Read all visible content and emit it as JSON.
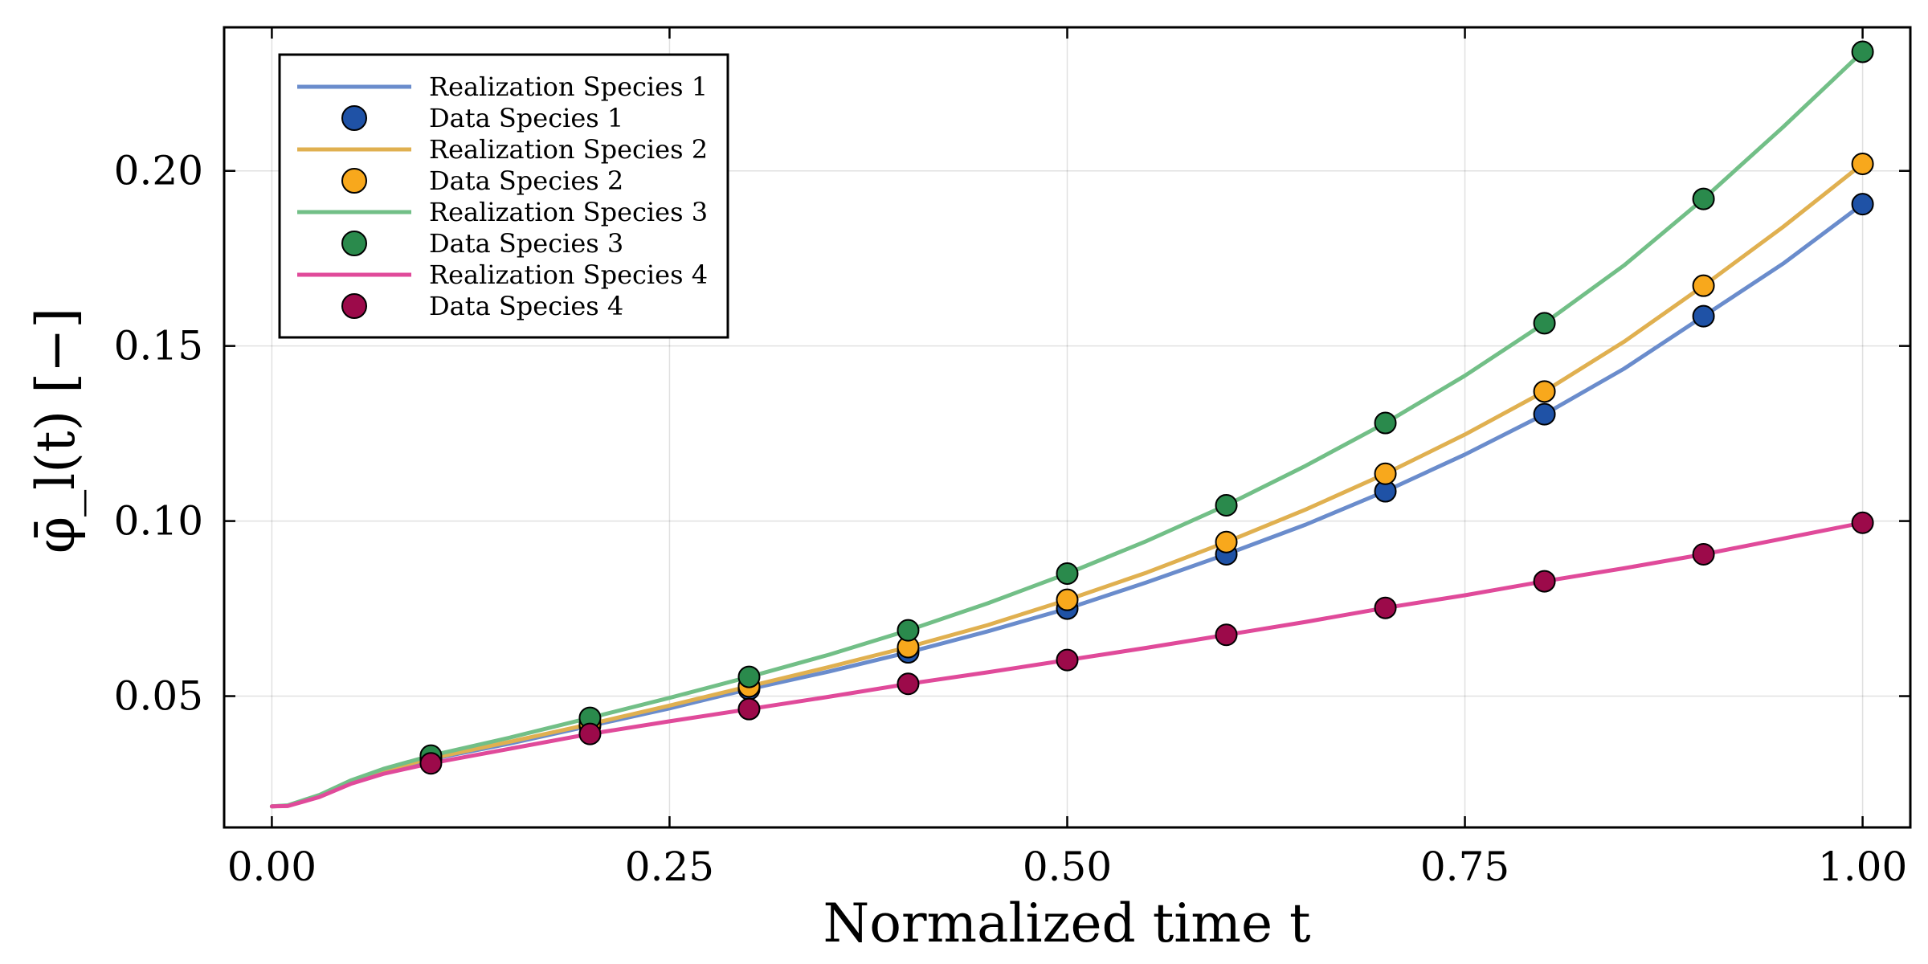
{
  "chart_data": {
    "type": "line",
    "title": "",
    "xlabel": "Normalized time t",
    "ylabel": "φ̄_l(t) [−]",
    "xlim": [
      -0.03,
      1.03
    ],
    "ylim": [
      0.0125,
      0.241
    ],
    "grid": true,
    "legend_position": "top-left",
    "xticks": [
      0.0,
      0.25,
      0.5,
      0.75,
      1.0
    ],
    "xtick_labels": [
      "0.00",
      "0.25",
      "0.50",
      "0.75",
      "1.00"
    ],
    "yticks": [
      0.05,
      0.1,
      0.15,
      0.2
    ],
    "ytick_labels": [
      "0.05",
      "0.10",
      "0.15",
      "0.20"
    ],
    "data_x": [
      0.1,
      0.2,
      0.3,
      0.4,
      0.5,
      0.6,
      0.7,
      0.8,
      0.9,
      1.0
    ],
    "series": [
      {
        "name": "Realization Species 1",
        "data_name": "Data Species 1",
        "line_color": "#6a8ccc",
        "marker_color": "#1f52a6",
        "curve_x": [
          0.0,
          0.01,
          0.03,
          0.05,
          0.07,
          0.1,
          0.15,
          0.2,
          0.25,
          0.3,
          0.35,
          0.4,
          0.45,
          0.5,
          0.55,
          0.6,
          0.65,
          0.7,
          0.75,
          0.8,
          0.85,
          0.9,
          0.95,
          1.0
        ],
        "curve_y": [
          0.0185,
          0.0187,
          0.0215,
          0.0255,
          0.0285,
          0.032,
          0.0365,
          0.0415,
          0.0465,
          0.052,
          0.057,
          0.0625,
          0.0685,
          0.075,
          0.0825,
          0.0905,
          0.099,
          0.1085,
          0.119,
          0.1305,
          0.1435,
          0.1585,
          0.1735,
          0.1905
        ],
        "data_y": [
          0.032,
          0.0415,
          0.052,
          0.0625,
          0.075,
          0.0905,
          0.1085,
          0.1305,
          0.1585,
          0.1905
        ]
      },
      {
        "name": "Realization Species 2",
        "data_name": "Data Species 2",
        "line_color": "#e0b050",
        "marker_color": "#f8a81c",
        "curve_x": [
          0.0,
          0.01,
          0.03,
          0.05,
          0.07,
          0.1,
          0.15,
          0.2,
          0.25,
          0.3,
          0.35,
          0.4,
          0.45,
          0.5,
          0.55,
          0.6,
          0.65,
          0.7,
          0.75,
          0.8,
          0.85,
          0.9,
          0.95,
          1.0
        ],
        "curve_y": [
          0.0185,
          0.0187,
          0.0215,
          0.0257,
          0.0288,
          0.0322,
          0.037,
          0.042,
          0.0473,
          0.0528,
          0.0583,
          0.064,
          0.0703,
          0.0775,
          0.0853,
          0.094,
          0.1033,
          0.1135,
          0.1247,
          0.137,
          0.1512,
          0.1672,
          0.184,
          0.202
        ],
        "data_y": [
          0.0322,
          0.042,
          0.0528,
          0.064,
          0.0775,
          0.094,
          0.1135,
          0.137,
          0.1672,
          0.202
        ]
      },
      {
        "name": "Realization Species 3",
        "data_name": "Data Species 3",
        "line_color": "#72bf87",
        "marker_color": "#2a8a4c",
        "curve_x": [
          0.0,
          0.01,
          0.03,
          0.05,
          0.07,
          0.1,
          0.15,
          0.2,
          0.25,
          0.3,
          0.35,
          0.4,
          0.45,
          0.5,
          0.55,
          0.6,
          0.65,
          0.7,
          0.75,
          0.8,
          0.85,
          0.9,
          0.95,
          1.0
        ],
        "curve_y": [
          0.0185,
          0.0188,
          0.0218,
          0.026,
          0.0292,
          0.033,
          0.0382,
          0.0438,
          0.0495,
          0.0555,
          0.0618,
          0.0688,
          0.0765,
          0.085,
          0.0943,
          0.1045,
          0.1158,
          0.128,
          0.1415,
          0.1565,
          0.173,
          0.192,
          0.2125,
          0.234
        ],
        "data_y": [
          0.033,
          0.0438,
          0.0555,
          0.0688,
          0.085,
          0.1045,
          0.128,
          0.1565,
          0.192,
          0.234
        ]
      },
      {
        "name": "Realization Species 4",
        "data_name": "Data Species 4",
        "line_color": "#e04a9a",
        "marker_color": "#9c0a4a",
        "curve_x": [
          0.0,
          0.01,
          0.03,
          0.05,
          0.07,
          0.1,
          0.15,
          0.2,
          0.25,
          0.3,
          0.35,
          0.4,
          0.45,
          0.5,
          0.55,
          0.6,
          0.65,
          0.7,
          0.75,
          0.8,
          0.85,
          0.9,
          0.95,
          1.0
        ],
        "curve_y": [
          0.0185,
          0.0186,
          0.0212,
          0.025,
          0.0278,
          0.0308,
          0.035,
          0.0392,
          0.0428,
          0.0463,
          0.0498,
          0.0535,
          0.0568,
          0.0603,
          0.0638,
          0.0675,
          0.0712,
          0.0752,
          0.0788,
          0.0828,
          0.0865,
          0.0905,
          0.095,
          0.0995
        ],
        "data_y": [
          0.0308,
          0.0392,
          0.0463,
          0.0535,
          0.0603,
          0.0675,
          0.0752,
          0.0828,
          0.0905,
          0.0995
        ]
      }
    ]
  }
}
